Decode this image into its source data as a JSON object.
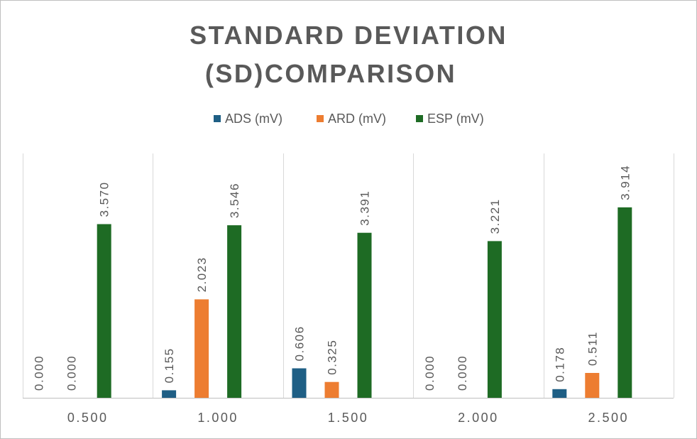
{
  "chart_data": {
    "type": "bar",
    "title_lines": [
      "STANDARD DEVIATION",
      "(SD)COMPARISON"
    ],
    "xlabel": "",
    "ylabel": "",
    "categories": [
      "0.500",
      "1.000",
      "1.500",
      "2.000",
      "2.500"
    ],
    "series": [
      {
        "name": "ADS (mV)",
        "color": "#1F5F85",
        "values": [
          0.0,
          0.155,
          0.606,
          0.0,
          0.178
        ],
        "labels": [
          "0.000",
          "0.155",
          "0.606",
          "0.000",
          "0.178"
        ]
      },
      {
        "name": "ARD (mV)",
        "color": "#ED7D31",
        "values": [
          0.0,
          2.023,
          0.325,
          0.0,
          0.511
        ],
        "labels": [
          "0.000",
          "2.023",
          "0.325",
          "0.000",
          "0.511"
        ]
      },
      {
        "name": "ESP (mV)",
        "color": "#1E6B24",
        "values": [
          3.57,
          3.546,
          3.391,
          3.221,
          3.914
        ],
        "labels": [
          "3.570",
          "3.546",
          "3.391",
          "3.221",
          "3.914"
        ]
      }
    ],
    "ylim": [
      0,
      4.5
    ],
    "grid": "vertical category separators",
    "legend_position": "top",
    "y_axis_visible": false,
    "data_labels": "rotated vertical above bars"
  }
}
